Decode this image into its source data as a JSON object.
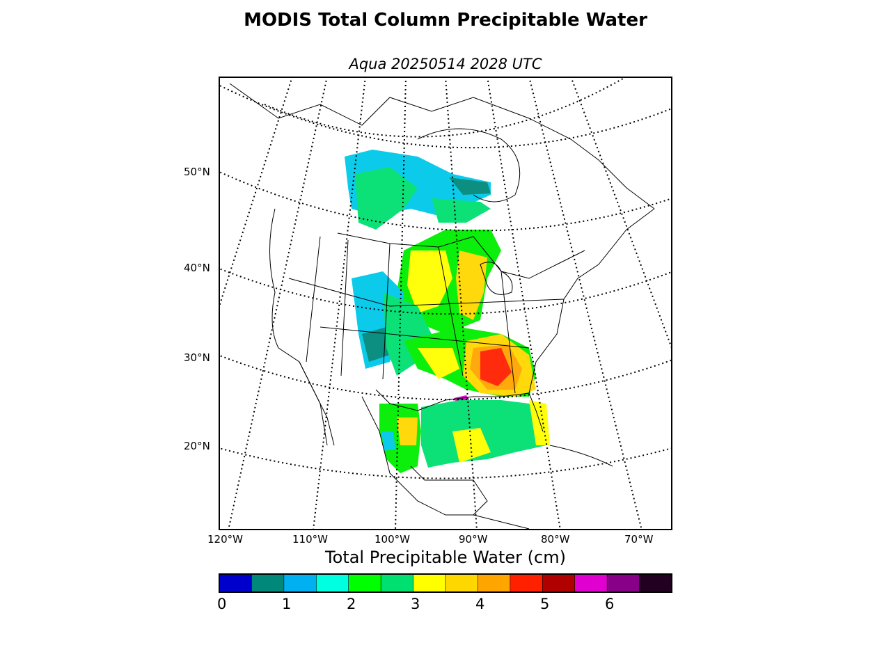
{
  "title": "MODIS Total Column Precipitable Water",
  "subtitle": "Aqua 20250514 2028 UTC",
  "map": {
    "latitude_labels": [
      "50°N",
      "40°N",
      "30°N",
      "20°N"
    ],
    "longitude_labels": [
      "120°W",
      "110°W",
      "100°W",
      "90°W",
      "80°W",
      "70°W"
    ],
    "graticule": "dotted",
    "projection": "conic"
  },
  "colorbar": {
    "title": "Total Precipitable Water (cm)",
    "ticks": [
      "0",
      "1",
      "2",
      "3",
      "4",
      "5",
      "6"
    ],
    "range": [
      0,
      7
    ],
    "colors": [
      "#0000cc",
      "#00897b",
      "#00b0f0",
      "#00ffe0",
      "#00ff00",
      "#00e070",
      "#ffff00",
      "#ffd700",
      "#ffa500",
      "#ff2000",
      "#b00000",
      "#e000d0",
      "#880088",
      "#220022"
    ]
  }
}
